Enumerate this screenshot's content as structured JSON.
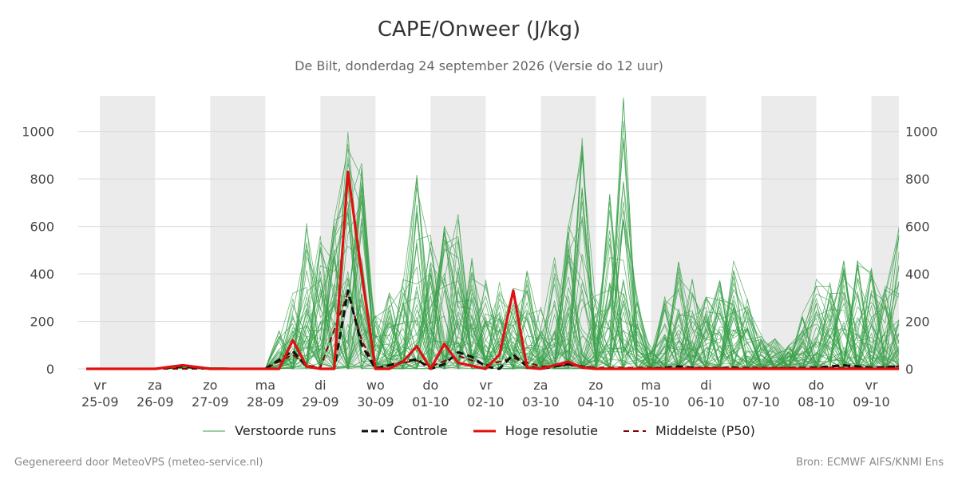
{
  "colors": {
    "perturbed": "#3aa04a",
    "control": "#111111",
    "highres": "#e01010",
    "median": "#8b0000",
    "shade": "#ebebeb",
    "grid": "#d9d9d9"
  },
  "chart_data": {
    "type": "line",
    "title": "CAPE/Onweer (J/kg)",
    "subtitle": "De Bilt, donderdag 24 september 2026 (Versie do 12 uur)",
    "xlabel": "",
    "ylabel": "",
    "ylim": [
      0,
      1150
    ],
    "y_ticks": [
      0,
      200,
      400,
      600,
      800,
      1000
    ],
    "x_range_days": [
      -0.25,
      14.5
    ],
    "x_ticks": [
      {
        "day": "vr",
        "date": "25-09"
      },
      {
        "day": "za",
        "date": "26-09"
      },
      {
        "day": "zo",
        "date": "27-09"
      },
      {
        "day": "ma",
        "date": "28-09"
      },
      {
        "day": "di",
        "date": "29-09"
      },
      {
        "day": "wo",
        "date": "30-09"
      },
      {
        "day": "do",
        "date": "01-10"
      },
      {
        "day": "vr",
        "date": "02-10"
      },
      {
        "day": "za",
        "date": "03-10"
      },
      {
        "day": "zo",
        "date": "04-10"
      },
      {
        "day": "ma",
        "date": "05-10"
      },
      {
        "day": "di",
        "date": "06-10"
      },
      {
        "day": "wo",
        "date": "07-10"
      },
      {
        "day": "do",
        "date": "08-10"
      },
      {
        "day": "vr",
        "date": "09-10"
      }
    ],
    "grid": true,
    "legend_position": "bottom",
    "series": [
      {
        "name": "Verstoorde runs",
        "style": "thin-green",
        "envelope": [
          [
            -0.25,
            0
          ],
          [
            0,
            0
          ],
          [
            1,
            0
          ],
          [
            1.5,
            30
          ],
          [
            2,
            10
          ],
          [
            2.5,
            5
          ],
          [
            3,
            0
          ],
          [
            3.5,
            320
          ],
          [
            3.75,
            690
          ],
          [
            4,
            560
          ],
          [
            4.5,
            1020
          ],
          [
            4.75,
            890
          ],
          [
            5,
            250
          ],
          [
            5.5,
            410
          ],
          [
            5.75,
            855
          ],
          [
            6,
            590
          ],
          [
            6.5,
            670
          ],
          [
            7,
            380
          ],
          [
            7.5,
            360
          ],
          [
            7.5,
            620
          ],
          [
            8,
            300
          ],
          [
            8.5,
            650
          ],
          [
            8.75,
            1005
          ],
          [
            9,
            340
          ],
          [
            9.5,
            1150
          ],
          [
            9.75,
            330
          ],
          [
            10,
            100
          ],
          [
            10.5,
            510
          ],
          [
            10.75,
            395
          ],
          [
            11,
            310
          ],
          [
            11.5,
            460
          ],
          [
            12,
            165
          ],
          [
            12.5,
            100
          ],
          [
            13,
            380
          ],
          [
            13.5,
            475
          ],
          [
            13.75,
            490
          ],
          [
            14,
            460
          ],
          [
            14.25,
            350
          ],
          [
            14.5,
            600
          ]
        ]
      },
      {
        "name": "Controle",
        "style": "dashed-black",
        "values": [
          [
            -0.25,
            0
          ],
          [
            1,
            0
          ],
          [
            1.5,
            10
          ],
          [
            2,
            0
          ],
          [
            3,
            0
          ],
          [
            3.5,
            75
          ],
          [
            3.75,
            10
          ],
          [
            4,
            0
          ],
          [
            4.25,
            0
          ],
          [
            4.5,
            330
          ],
          [
            4.75,
            100
          ],
          [
            5,
            0
          ],
          [
            5.5,
            30
          ],
          [
            5.75,
            40
          ],
          [
            6,
            0
          ],
          [
            6.25,
            20
          ],
          [
            6.5,
            70
          ],
          [
            6.75,
            50
          ],
          [
            7,
            10
          ],
          [
            7.25,
            0
          ],
          [
            7.5,
            60
          ],
          [
            7.75,
            10
          ],
          [
            8,
            0
          ],
          [
            8.5,
            20
          ],
          [
            9,
            0
          ],
          [
            10,
            0
          ],
          [
            10.5,
            10
          ],
          [
            11,
            0
          ],
          [
            11.5,
            5
          ],
          [
            12,
            0
          ],
          [
            13,
            5
          ],
          [
            13.5,
            15
          ],
          [
            14,
            5
          ],
          [
            14.5,
            10
          ]
        ]
      },
      {
        "name": "Hoge resolutie",
        "style": "solid-red",
        "values": [
          [
            -0.25,
            0
          ],
          [
            1,
            0
          ],
          [
            1.5,
            15
          ],
          [
            2,
            0
          ],
          [
            3,
            0
          ],
          [
            3.25,
            0
          ],
          [
            3.5,
            120
          ],
          [
            3.75,
            10
          ],
          [
            4,
            0
          ],
          [
            4.25,
            0
          ],
          [
            4.5,
            830
          ],
          [
            4.75,
            400
          ],
          [
            5,
            0
          ],
          [
            5.25,
            0
          ],
          [
            5.5,
            30
          ],
          [
            5.75,
            95
          ],
          [
            6,
            0
          ],
          [
            6.25,
            105
          ],
          [
            6.5,
            25
          ],
          [
            7,
            0
          ],
          [
            7.25,
            60
          ],
          [
            7.5,
            330
          ],
          [
            7.75,
            5
          ],
          [
            8,
            0
          ],
          [
            8.5,
            30
          ],
          [
            8.75,
            5
          ],
          [
            9,
            0
          ],
          [
            10,
            0
          ],
          [
            11,
            0
          ],
          [
            12,
            0
          ],
          [
            13,
            0
          ],
          [
            14,
            0
          ],
          [
            14.5,
            0
          ]
        ]
      },
      {
        "name": "Middelste (P50)",
        "style": "dashed-darkred",
        "values": [
          [
            -0.25,
            0
          ],
          [
            1,
            0
          ],
          [
            2,
            0
          ],
          [
            3,
            0
          ],
          [
            3.5,
            60
          ],
          [
            3.75,
            15
          ],
          [
            4,
            5
          ],
          [
            4.5,
            320
          ],
          [
            4.75,
            120
          ],
          [
            5,
            5
          ],
          [
            5.5,
            25
          ],
          [
            5.75,
            35
          ],
          [
            6,
            10
          ],
          [
            6.5,
            55
          ],
          [
            7,
            15
          ],
          [
            7.5,
            45
          ],
          [
            8,
            10
          ],
          [
            8.5,
            15
          ],
          [
            9,
            5
          ],
          [
            10,
            5
          ],
          [
            11,
            5
          ],
          [
            12,
            5
          ],
          [
            13,
            5
          ],
          [
            14,
            5
          ],
          [
            14.5,
            10
          ]
        ]
      }
    ]
  },
  "footer": {
    "left": "Gegenereerd door MeteoVPS (meteo-service.nl)",
    "right": "Bron: ECMWF AIFS/KNMI Ens"
  }
}
